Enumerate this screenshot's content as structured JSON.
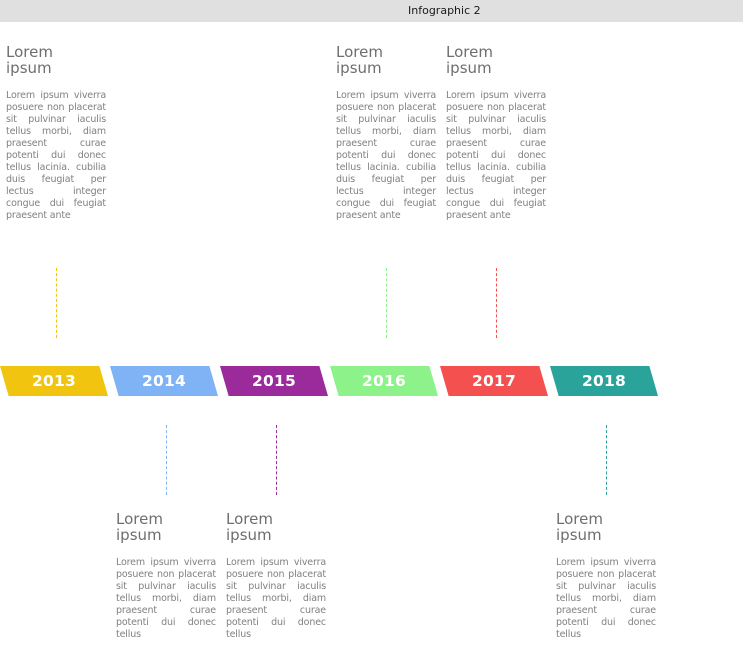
{
  "window": {
    "title": "Infographic 2"
  },
  "cards": [
    {
      "position": "top",
      "title": "Lorem ipsum",
      "body": "Lorem ipsum viverra posuere non placerat sit pulvinar iaculis tellus morbi, diam praesent curae potenti dui donec tellus lacinia. cubilia duis feugiat per lectus integer congue dui feugiat praesent ante"
    },
    {
      "position": "bottom",
      "title": "Lorem ipsum",
      "body": "Lorem ipsum viverra posuere non placerat sit pulvinar iaculis tellus morbi, diam praesent curae potenti dui donec tellus"
    },
    {
      "position": "bottom",
      "title": "Lorem ipsum",
      "body": "Lorem ipsum viverra posuere non placerat sit pulvinar iaculis tellus morbi, diam praesent curae potenti dui donec tellus"
    },
    {
      "position": "top",
      "title": "Lorem ipsum",
      "body": "Lorem ipsum viverra posuere non placerat sit pulvinar iaculis tellus morbi, diam praesent curae potenti dui donec tellus lacinia. cubilia duis feugiat per lectus integer congue dui feugiat praesent ante"
    },
    {
      "position": "top",
      "title": "Lorem ipsum",
      "body": "Lorem ipsum viverra posuere non placerat sit pulvinar iaculis tellus morbi, diam praesent curae potenti dui donec tellus lacinia. cubilia duis feugiat per lectus integer congue dui feugiat praesent ante"
    },
    {
      "position": "bottom",
      "title": "Lorem ipsum",
      "body": "Lorem ipsum viverra posuere non placerat sit pulvinar iaculis tellus morbi, diam praesent curae potenti dui donec tellus"
    }
  ],
  "timeline": [
    {
      "year": "2013",
      "color": "#f1c40f"
    },
    {
      "year": "2014",
      "color": "#7fb3f5"
    },
    {
      "year": "2015",
      "color": "#9b2a9b"
    },
    {
      "year": "2016",
      "color": "#8ef28a"
    },
    {
      "year": "2017",
      "color": "#f4504f"
    },
    {
      "year": "2018",
      "color": "#2aa39a"
    }
  ]
}
